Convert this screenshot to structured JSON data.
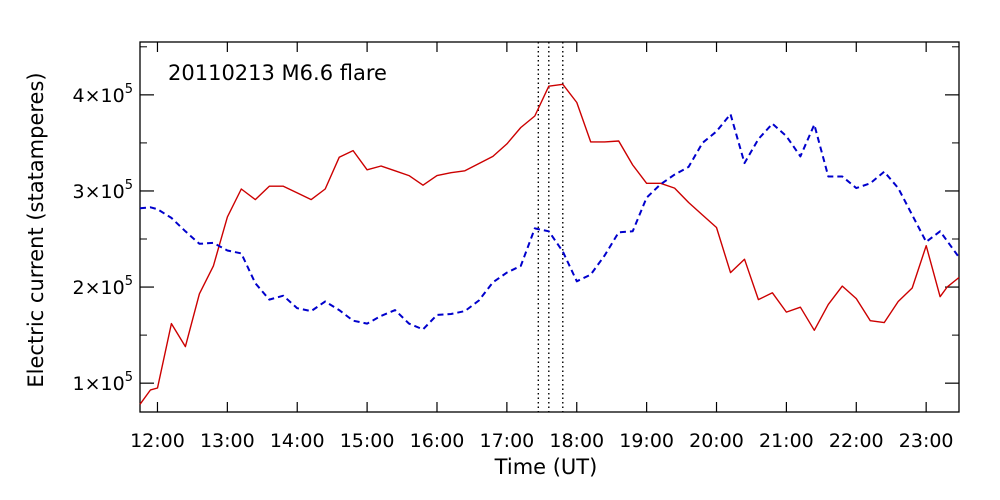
{
  "chart_data": {
    "type": "line",
    "annotation": "20110213 M6.6 flare",
    "xlabel": "Time (UT)",
    "ylabel": "Electric current (statamperes)",
    "xlim": [
      11.75,
      23.47
    ],
    "ylim": [
      70000,
      455000
    ],
    "x_ticks": [
      {
        "value": 12,
        "label": "12:00"
      },
      {
        "value": 13,
        "label": "13:00"
      },
      {
        "value": 14,
        "label": "14:00"
      },
      {
        "value": 15,
        "label": "15:00"
      },
      {
        "value": 16,
        "label": "16:00"
      },
      {
        "value": 17,
        "label": "17:00"
      },
      {
        "value": 18,
        "label": "18:00"
      },
      {
        "value": 19,
        "label": "19:00"
      },
      {
        "value": 20,
        "label": "20:00"
      },
      {
        "value": 21,
        "label": "21:00"
      },
      {
        "value": 22,
        "label": "22:00"
      },
      {
        "value": 23,
        "label": "23:00"
      }
    ],
    "y_ticks": [
      {
        "value": 100000,
        "mantissa": "1",
        "exponent": "5"
      },
      {
        "value": 200000,
        "mantissa": "2",
        "exponent": "5"
      },
      {
        "value": 300000,
        "mantissa": "3",
        "exponent": "5"
      },
      {
        "value": 400000,
        "mantissa": "4",
        "exponent": "5"
      }
    ],
    "vertical_lines": [
      17.45,
      17.6,
      17.8
    ],
    "series": [
      {
        "style": "solid",
        "color": "#cc0000",
        "points": [
          [
            11.75,
            78000
          ],
          [
            11.9,
            93000
          ],
          [
            12.0,
            95000
          ],
          [
            12.2,
            162000
          ],
          [
            12.4,
            138000
          ],
          [
            12.6,
            193000
          ],
          [
            12.8,
            222000
          ],
          [
            13.0,
            273000
          ],
          [
            13.2,
            302000
          ],
          [
            13.4,
            291000
          ],
          [
            13.6,
            305000
          ],
          [
            13.8,
            305000
          ],
          [
            14.0,
            298000
          ],
          [
            14.2,
            291000
          ],
          [
            14.4,
            302000
          ],
          [
            14.6,
            335000
          ],
          [
            14.8,
            342000
          ],
          [
            15.0,
            322000
          ],
          [
            15.2,
            326000
          ],
          [
            15.4,
            321000
          ],
          [
            15.6,
            316000
          ],
          [
            15.8,
            306000
          ],
          [
            16.0,
            316000
          ],
          [
            16.2,
            319000
          ],
          [
            16.4,
            321000
          ],
          [
            16.8,
            336000
          ],
          [
            17.0,
            349000
          ],
          [
            17.2,
            366000
          ],
          [
            17.4,
            378000
          ],
          [
            17.6,
            409000
          ],
          [
            17.8,
            411000
          ],
          [
            18.0,
            392000
          ],
          [
            18.2,
            351000
          ],
          [
            18.4,
            351000
          ],
          [
            18.6,
            352000
          ],
          [
            18.8,
            327000
          ],
          [
            19.0,
            308000
          ],
          [
            19.2,
            308000
          ],
          [
            19.4,
            303000
          ],
          [
            19.6,
            288000
          ],
          [
            19.8,
            275000
          ],
          [
            20.0,
            262000
          ],
          [
            20.2,
            215000
          ],
          [
            20.4,
            229000
          ],
          [
            20.6,
            187000
          ],
          [
            20.8,
            194000
          ],
          [
            21.0,
            174000
          ],
          [
            21.2,
            179000
          ],
          [
            21.4,
            155000
          ],
          [
            21.6,
            182000
          ],
          [
            21.8,
            201000
          ],
          [
            22.0,
            188000
          ],
          [
            22.2,
            165000
          ],
          [
            22.4,
            163000
          ],
          [
            22.6,
            185000
          ],
          [
            22.8,
            199000
          ],
          [
            23.0,
            243000
          ],
          [
            23.2,
            190000
          ],
          [
            23.3,
            200000
          ],
          [
            23.47,
            210000
          ]
        ]
      },
      {
        "style": "dashed",
        "color": "#0000cc",
        "points": [
          [
            11.75,
            282000
          ],
          [
            11.9,
            283000
          ],
          [
            12.0,
            281000
          ],
          [
            12.2,
            272000
          ],
          [
            12.4,
            258000
          ],
          [
            12.6,
            245000
          ],
          [
            12.8,
            246000
          ],
          [
            13.0,
            238000
          ],
          [
            13.2,
            235000
          ],
          [
            13.4,
            204000
          ],
          [
            13.6,
            187000
          ],
          [
            13.8,
            191000
          ],
          [
            14.0,
            178000
          ],
          [
            14.2,
            175000
          ],
          [
            14.4,
            185000
          ],
          [
            14.6,
            176000
          ],
          [
            14.8,
            165000
          ],
          [
            15.0,
            162000
          ],
          [
            15.2,
            170000
          ],
          [
            15.4,
            176000
          ],
          [
            15.6,
            162000
          ],
          [
            15.8,
            156000
          ],
          [
            16.0,
            171000
          ],
          [
            16.2,
            172000
          ],
          [
            16.4,
            175000
          ],
          [
            16.6,
            186000
          ],
          [
            16.8,
            205000
          ],
          [
            17.0,
            215000
          ],
          [
            17.2,
            222000
          ],
          [
            17.4,
            261000
          ],
          [
            17.6,
            258000
          ],
          [
            17.8,
            237000
          ],
          [
            18.0,
            206000
          ],
          [
            18.2,
            213000
          ],
          [
            18.4,
            233000
          ],
          [
            18.6,
            257000
          ],
          [
            18.8,
            258000
          ],
          [
            19.0,
            293000
          ],
          [
            19.2,
            307000
          ],
          [
            19.4,
            317000
          ],
          [
            19.6,
            325000
          ],
          [
            19.8,
            350000
          ],
          [
            20.0,
            362000
          ],
          [
            20.2,
            380000
          ],
          [
            20.4,
            329000
          ],
          [
            20.6,
            354000
          ],
          [
            20.8,
            370000
          ],
          [
            21.0,
            357000
          ],
          [
            21.2,
            336000
          ],
          [
            21.4,
            369000
          ],
          [
            21.6,
            315000
          ],
          [
            21.8,
            315000
          ],
          [
            22.0,
            303000
          ],
          [
            22.2,
            308000
          ],
          [
            22.4,
            320000
          ],
          [
            22.6,
            303000
          ],
          [
            22.8,
            275000
          ],
          [
            23.0,
            247000
          ],
          [
            23.2,
            258000
          ],
          [
            23.47,
            231000
          ]
        ]
      }
    ]
  }
}
